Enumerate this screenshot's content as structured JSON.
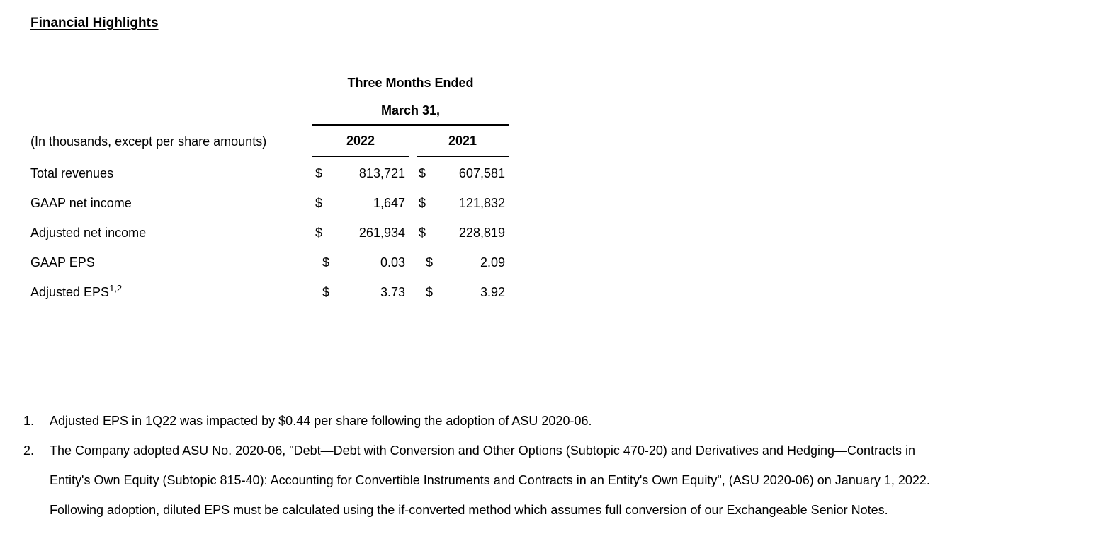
{
  "page": {
    "title": "Financial Highlights"
  },
  "table": {
    "group_header_line1": "Three Months Ended",
    "group_header_line2": "March 31,",
    "units_note": "(In thousands, except per share amounts)",
    "col_2022": "2022",
    "col_2021": "2021",
    "currency_symbol": "$",
    "rows": [
      {
        "label": "Total revenues",
        "v2022": "813,721",
        "v2021": "607,581"
      },
      {
        "label": "GAAP net income",
        "v2022": "1,647",
        "v2021": "121,832"
      },
      {
        "label": "Adjusted net income",
        "v2022": "261,934",
        "v2021": "228,819"
      },
      {
        "label": "GAAP EPS",
        "v2022": "0.03",
        "v2021": "2.09"
      },
      {
        "label": "Adjusted EPS",
        "superscript": "1,2",
        "v2022": "3.73",
        "v2021": "3.92"
      }
    ]
  },
  "footnotes": [
    {
      "number": "1.",
      "lines": [
        "Adjusted EPS in 1Q22 was impacted by $0.44 per share following the adoption of ASU 2020-06."
      ]
    },
    {
      "number": "2.",
      "lines": [
        "The Company adopted ASU No. 2020-06, \"Debt—Debt with Conversion and Other Options (Subtopic 470-20) and Derivatives and Hedging—Contracts in",
        "Entity's Own Equity (Subtopic 815-40): Accounting for Convertible Instruments and Contracts in an Entity's Own Equity\", (ASU 2020-06) on January 1, 2022.",
        "Following adoption, diluted EPS must be calculated using the if-converted method which assumes full conversion of our Exchangeable Senior Notes."
      ]
    }
  ]
}
